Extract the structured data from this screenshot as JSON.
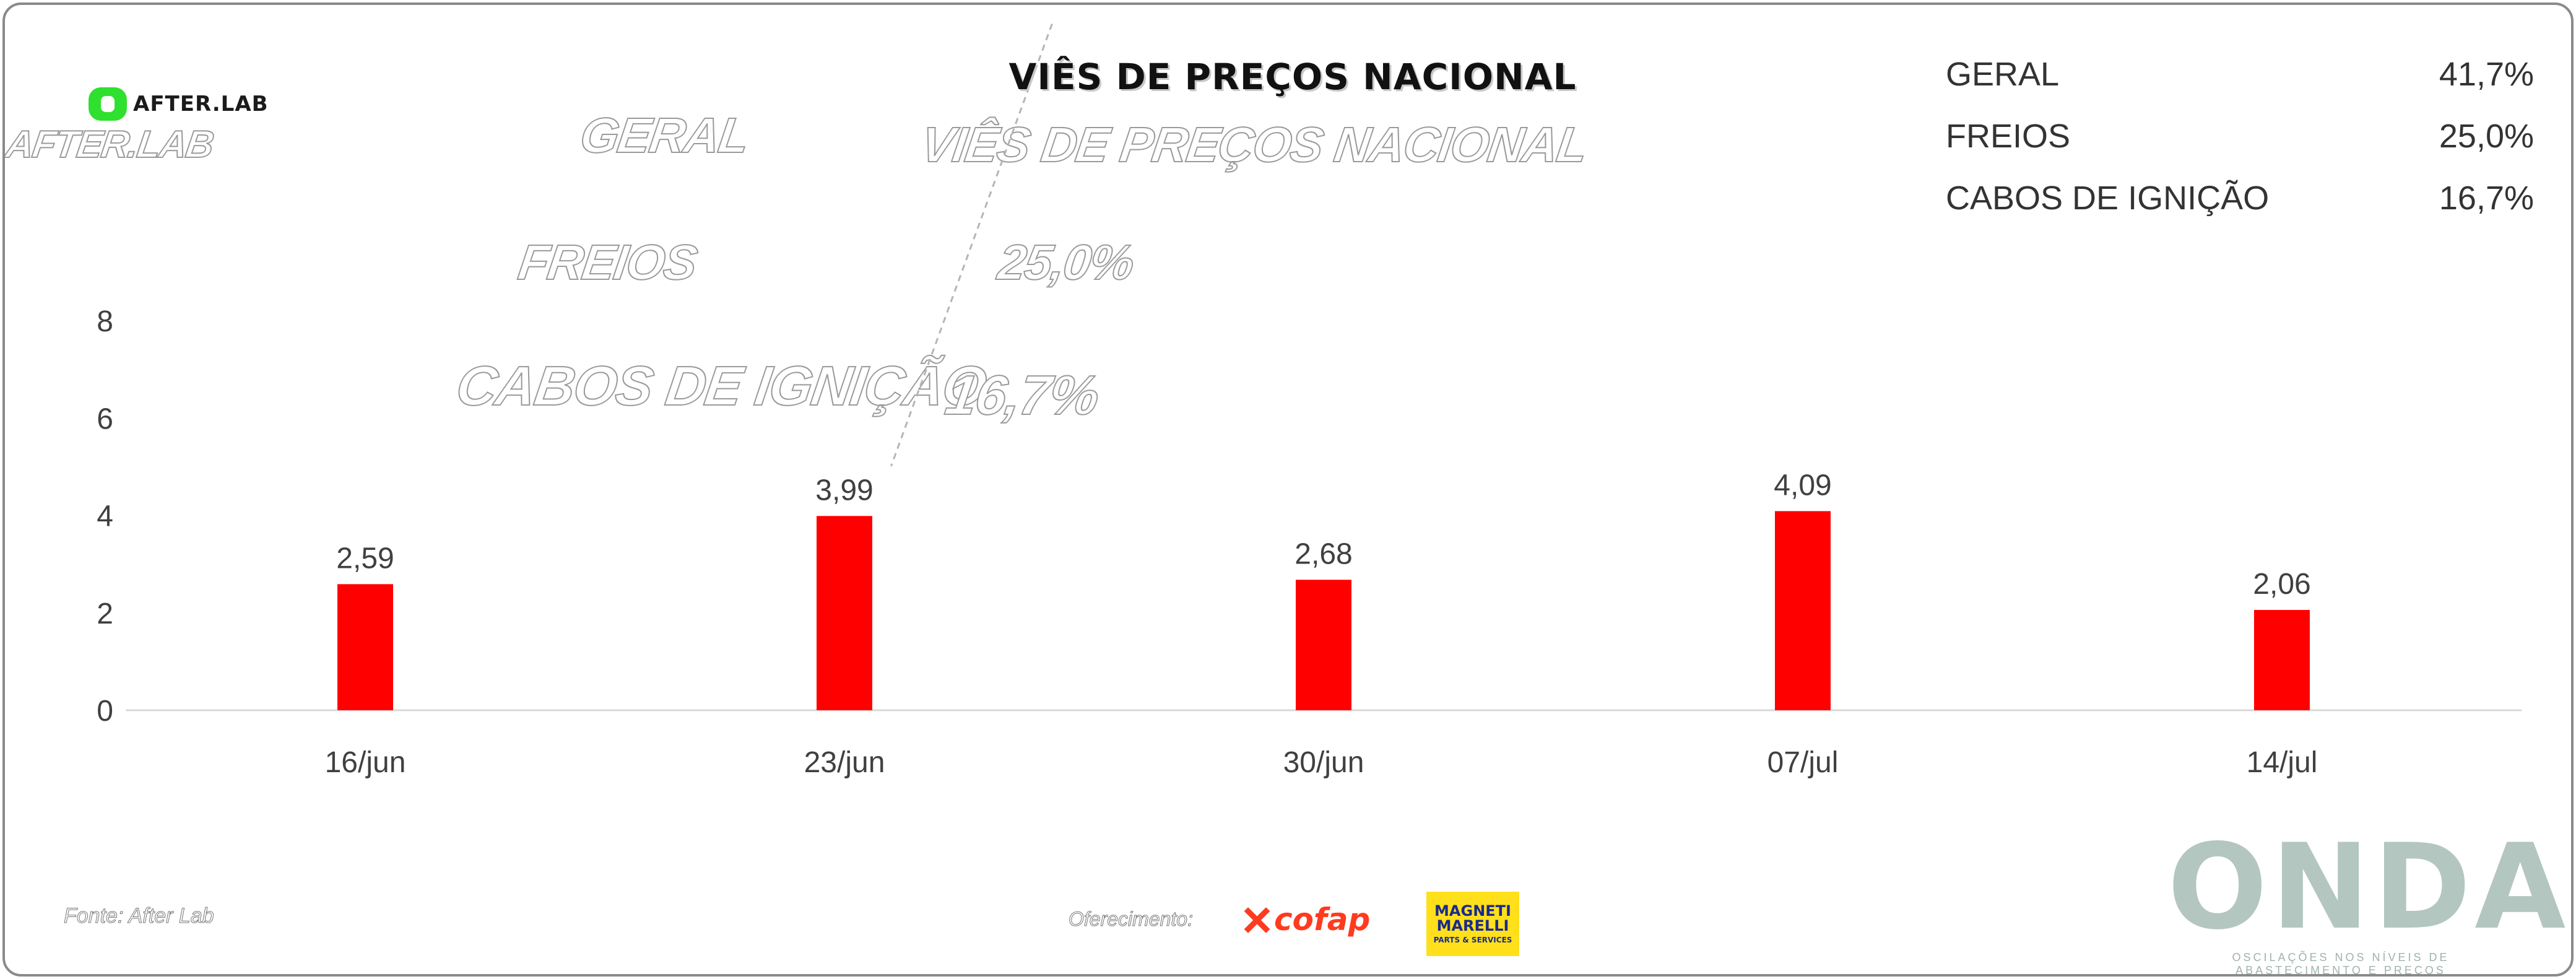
{
  "brand": {
    "name": "AFTER.LAB"
  },
  "title": "VIÊS DE PREÇOS NACIONAL",
  "stats": [
    {
      "label": "GERAL",
      "value": "41,7%"
    },
    {
      "label": "FREIOS",
      "value": "25,0%"
    },
    {
      "label": "CABOS DE IGNIÇÃO",
      "value": "16,7%"
    }
  ],
  "chart_data": {
    "type": "bar",
    "title": "VIÊS DE PREÇOS NACIONAL",
    "categories": [
      "16/jun",
      "23/jun",
      "30/jun",
      "07/jul",
      "14/jul"
    ],
    "values": [
      2.59,
      3.99,
      2.68,
      4.09,
      2.06
    ],
    "data_labels": [
      "2,59",
      "3,99",
      "2,68",
      "4,09",
      "2,06"
    ],
    "yticks": [
      "0",
      "2",
      "4",
      "6",
      "8"
    ],
    "ylim": [
      0,
      8
    ],
    "bar_color": "#ff0000",
    "grid": false,
    "legend": "none"
  },
  "footer": {
    "source": "Fonte: After Lab",
    "sponsor_label": "Oferecimento:",
    "cofap": "cofap",
    "magneti_marelli_top": "MAGNETI MARELLI",
    "magneti_marelli_bottom": "PARTS & SERVICES",
    "onda": "ONDA",
    "onda_tagline": "OSCILAÇÕES NOS NÍVEIS DE ABASTECIMENTO E PREÇOS"
  }
}
